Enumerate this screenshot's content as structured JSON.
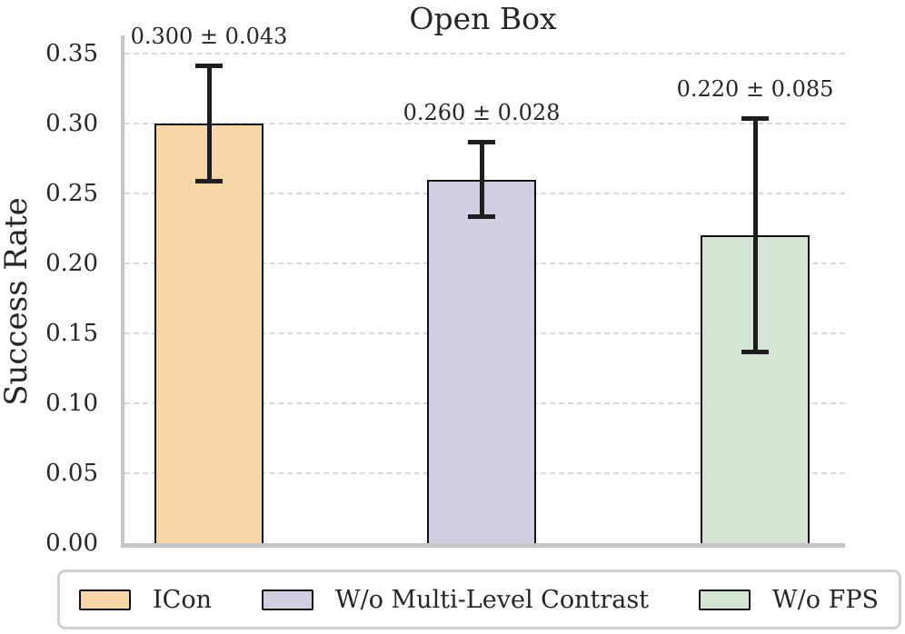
{
  "chart_data": {
    "type": "bar",
    "title": "Open Box",
    "ylabel": "Success Rate",
    "xlabel": "",
    "categories": [
      "ICon",
      "W/o Multi-Level Contrast",
      "W/o FPS"
    ],
    "values": [
      0.3,
      0.26,
      0.22
    ],
    "errors": [
      0.043,
      0.028,
      0.085
    ],
    "bar_labels": [
      "0.300 ± 0.043",
      "0.260 ± 0.028",
      "0.220 ± 0.085"
    ],
    "bar_colors": [
      "#f8d6a6",
      "#d0cee0",
      "#d5e5d3"
    ],
    "bar_edge_color": "#111111",
    "error_color": "#1e1e1e",
    "ylim": [
      0,
      0.363
    ],
    "yticks": [
      0.0,
      0.05,
      0.1,
      0.15,
      0.2,
      0.25,
      0.3,
      0.35
    ],
    "ytick_labels": [
      "0.00",
      "0.05",
      "0.10",
      "0.15",
      "0.20",
      "0.25",
      "0.30",
      "0.35"
    ],
    "grid": "horizontal-dashed",
    "legend_position": "bottom"
  },
  "legend": {
    "items": [
      {
        "label": "ICon",
        "color": "#f8d6a6"
      },
      {
        "label": "W/o Multi-Level Contrast",
        "color": "#d0cee0"
      },
      {
        "label": "W/o FPS",
        "color": "#d5e5d3"
      }
    ]
  },
  "colors": {
    "background": "#ffffff",
    "grid": "#d9d9d9",
    "spine": "#c6c6c6",
    "text": "#262626",
    "legend_border": "#d0d0d0"
  }
}
